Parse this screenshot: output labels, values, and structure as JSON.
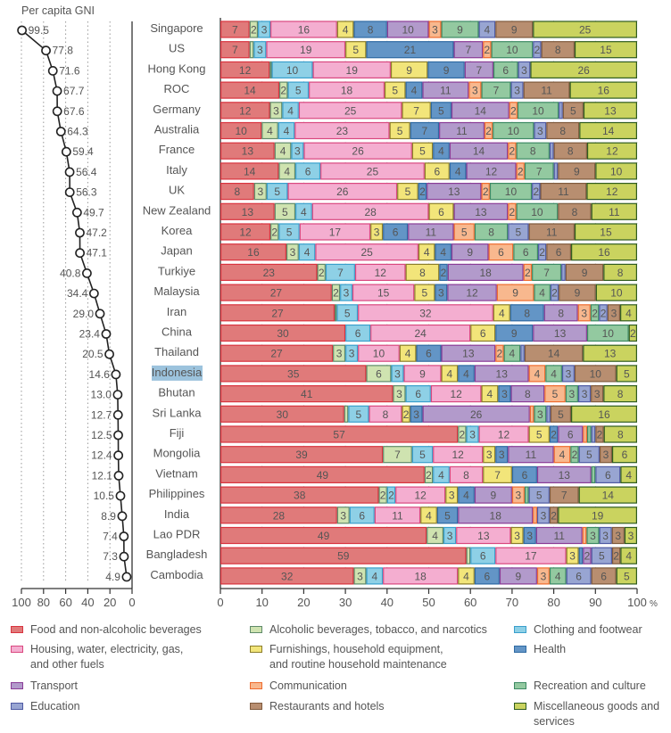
{
  "chart_data": [
    {
      "type": "line",
      "title": "Per capita GNI",
      "orientation": "horizontal, reversed x-axis (100 at left, 0 at right)",
      "xlim": [
        100,
        0
      ],
      "xticks": [
        100,
        80,
        60,
        40,
        20,
        0
      ],
      "grid": "dotted vertical at 20, 40, 60, 80, 100",
      "categories": [
        "Singapore",
        "US",
        "Hong Kong",
        "ROC",
        "Germany",
        "Australia",
        "France",
        "Italy",
        "UK",
        "New Zealand",
        "Korea",
        "Japan",
        "Turkiye",
        "Malaysia",
        "Iran",
        "China",
        "Thailand",
        "Indonesia",
        "Bhutan",
        "Sri Lanka",
        "Fiji",
        "Mongolia",
        "Vietnam",
        "Philippines",
        "India",
        "Lao PDR",
        "Bangladesh",
        "Cambodia"
      ],
      "values": [
        99.5,
        77.8,
        71.6,
        67.7,
        67.6,
        64.3,
        59.4,
        56.4,
        56.3,
        49.7,
        47.2,
        47.1,
        40.8,
        34.4,
        29.0,
        23.4,
        20.5,
        14.6,
        13.0,
        12.7,
        12.5,
        12.4,
        12.1,
        10.5,
        8.9,
        7.4,
        7.3,
        4.9
      ],
      "labels": [
        "99.5",
        "77.8",
        "71.6",
        "67.7",
        "67.6",
        "64.3",
        "59.4",
        "56.4",
        "56.3",
        "49.7",
        "47.2",
        "47.1",
        "40.8",
        "34.4",
        "29.0",
        "23.4",
        "20.5",
        "14.6",
        "13.0",
        "12.7",
        "12.5",
        "12.4",
        "12.1",
        "10.5",
        "8.9",
        "7.4",
        "7.3",
        "4.9"
      ]
    },
    {
      "type": "bar",
      "stacked": true,
      "orientation": "horizontal",
      "xlabel": "%",
      "xlim": [
        0,
        100
      ],
      "xticks": [
        0,
        10,
        20,
        30,
        40,
        50,
        60,
        70,
        80,
        90,
        100
      ],
      "xtick_suffix": "%",
      "highlight_category": "Indonesia",
      "highlight_color": "#9cc3dd",
      "categories": [
        "Singapore",
        "US",
        "Hong Kong",
        "ROC",
        "Germany",
        "Australia",
        "France",
        "Italy",
        "UK",
        "New Zealand",
        "Korea",
        "Japan",
        "Turkiye",
        "Malaysia",
        "Iran",
        "China",
        "Thailand",
        "Indonesia",
        "Bhutan",
        "Sri Lanka",
        "Fiji",
        "Mongolia",
        "Vietnam",
        "Philippines",
        "India",
        "Lao PDR",
        "Bangladesh",
        "Cambodia"
      ],
      "series": [
        {
          "name": "Food and non-alcoholic beverages",
          "color": "#e07a7a",
          "border": "#d9343f",
          "values": [
            7,
            7,
            12,
            14,
            12,
            10,
            13,
            14,
            8,
            13,
            12,
            16,
            23,
            27,
            27,
            30,
            27,
            35,
            41,
            30,
            57,
            39,
            49,
            38,
            28,
            49,
            59,
            32
          ]
        },
        {
          "name": "Alcoholic beverages, tobacco, and narcotics",
          "color": "#cfe3b0",
          "border": "#5f8a6a",
          "values": [
            2,
            1,
            0.5,
            2,
            3,
            4,
            4,
            4,
            3,
            5,
            2,
            3,
            2,
            2,
            0.5,
            0,
            3,
            6,
            3,
            1,
            2,
            7,
            2,
            2,
            3,
            4,
            1,
            3
          ]
        },
        {
          "name": "Clothing and footwear",
          "color": "#8ed0e6",
          "border": "#3a9fcc",
          "values": [
            3,
            3,
            10,
            5,
            4,
            4,
            3,
            6,
            5,
            4,
            5,
            4,
            7,
            3,
            5,
            6,
            3,
            3,
            6,
            5,
            3,
            5,
            4,
            2,
            6,
            3,
            6,
            4
          ]
        },
        {
          "name": "Housing, water, electricity, gas, and other fuels",
          "color": "#f4aed0",
          "border": "#d9487f",
          "values": [
            16,
            19,
            19,
            18,
            25,
            23,
            26,
            25,
            26,
            28,
            17,
            25,
            12,
            15,
            32,
            24,
            10,
            9,
            12,
            8,
            12,
            12,
            8,
            12,
            11,
            13,
            17,
            18
          ]
        },
        {
          "name": "Furnishings, household equipment, and routine household maintenance",
          "color": "#f2e57a",
          "border": "#8c7e2a",
          "values": [
            4,
            5,
            9,
            5,
            7,
            5,
            5,
            6,
            5,
            6,
            3,
            4,
            8,
            5,
            4,
            6,
            4,
            4,
            4,
            2,
            5,
            3,
            7,
            3,
            4,
            3,
            3,
            4
          ]
        },
        {
          "name": "Health",
          "color": "#6395c6",
          "border": "#2f6aa3",
          "values": [
            8,
            21,
            9,
            4,
            5,
            7,
            4,
            4,
            2,
            0,
            6,
            4,
            2,
            3,
            8,
            9,
            6,
            4,
            3,
            3,
            2,
            3,
            6,
            4,
            5,
            3,
            1,
            6
          ]
        },
        {
          "name": "Transport",
          "color": "#b29acb",
          "border": "#8a3c97",
          "values": [
            10,
            7,
            7,
            11,
            14,
            11,
            14,
            12,
            13,
            13,
            11,
            9,
            18,
            12,
            8,
            13,
            13,
            13,
            8,
            26,
            6,
            11,
            13,
            9,
            18,
            11,
            2,
            9
          ]
        },
        {
          "name": "Communication",
          "color": "#f8b88e",
          "border": "#ee6b2e",
          "values": [
            3,
            2,
            0,
            3,
            2,
            2,
            2,
            2,
            2,
            2,
            5,
            6,
            2,
            9,
            3,
            0,
            2,
            4,
            5,
            1,
            1,
            4,
            0,
            3,
            1,
            1,
            0,
            3
          ]
        },
        {
          "name": "Recreation and culture",
          "color": "#93c9a0",
          "border": "#3d8a64",
          "values": [
            9,
            10,
            6,
            7,
            10,
            10,
            8,
            7,
            10,
            10,
            8,
            6,
            7,
            4,
            2,
            10,
            4,
            4,
            3,
            3,
            1,
            2,
            1,
            1,
            0,
            3,
            0,
            4
          ]
        },
        {
          "name": "Education",
          "color": "#98a5d2",
          "border": "#4f5aa3",
          "values": [
            4,
            2,
            3,
            3,
            1,
            3,
            1,
            1,
            2,
            0,
            5,
            2,
            1,
            2,
            2,
            0,
            1,
            3,
            3,
            1,
            1,
            5,
            6,
            5,
            3,
            3,
            5,
            6
          ]
        },
        {
          "name": "Restaurants and hotels",
          "color": "#b88e70",
          "border": "#7f5a3d",
          "values": [
            9,
            8,
            0,
            11,
            5,
            8,
            8,
            9,
            11,
            8,
            11,
            6,
            9,
            9,
            3,
            0,
            14,
            10,
            3,
            5,
            2,
            3,
            0,
            7,
            2,
            3,
            2,
            6
          ]
        },
        {
          "name": "Miscellaneous goods and services",
          "color": "#cad35f",
          "border": "#2f5c1f",
          "values": [
            25,
            15,
            26,
            16,
            13,
            14,
            12,
            10,
            12,
            11,
            15,
            16,
            8,
            10,
            4,
            2,
            13,
            5,
            8,
            16,
            8,
            6,
            4,
            14,
            19,
            3,
            4,
            5
          ]
        }
      ]
    }
  ],
  "legend": [
    {
      "label_lines": [
        "Food and non-alcoholic beverages"
      ],
      "color": "#e07a7a",
      "border": "#d9343f"
    },
    {
      "label_lines": [
        "Alcoholic beverages, tobacco, and narcotics"
      ],
      "color": "#cfe3b0",
      "border": "#5f8a6a"
    },
    {
      "label_lines": [
        "Clothing and footwear"
      ],
      "color": "#8ed0e6",
      "border": "#3a9fcc"
    },
    {
      "label_lines": [
        "Housing, water, electricity, gas,",
        "and other fuels"
      ],
      "color": "#f4aed0",
      "border": "#d9487f"
    },
    {
      "label_lines": [
        "Furnishings, household equipment,",
        "and routine household maintenance"
      ],
      "color": "#f2e57a",
      "border": "#8c7e2a"
    },
    {
      "label_lines": [
        "Health"
      ],
      "color": "#6395c6",
      "border": "#2f6aa3"
    },
    {
      "label_lines": [
        "Transport"
      ],
      "color": "#b29acb",
      "border": "#8a3c97"
    },
    {
      "label_lines": [
        "Communication"
      ],
      "color": "#f8b88e",
      "border": "#ee6b2e"
    },
    {
      "label_lines": [
        "Recreation and culture"
      ],
      "color": "#93c9a0",
      "border": "#3d8a64"
    },
    {
      "label_lines": [
        "Education"
      ],
      "color": "#98a5d2",
      "border": "#4f5aa3"
    },
    {
      "label_lines": [
        "Restaurants and hotels"
      ],
      "color": "#b88e70",
      "border": "#7f5a3d"
    },
    {
      "label_lines": [
        "Miscellaneous goods and",
        "services"
      ],
      "color": "#cad35f",
      "border": "#2f5c1f"
    }
  ]
}
